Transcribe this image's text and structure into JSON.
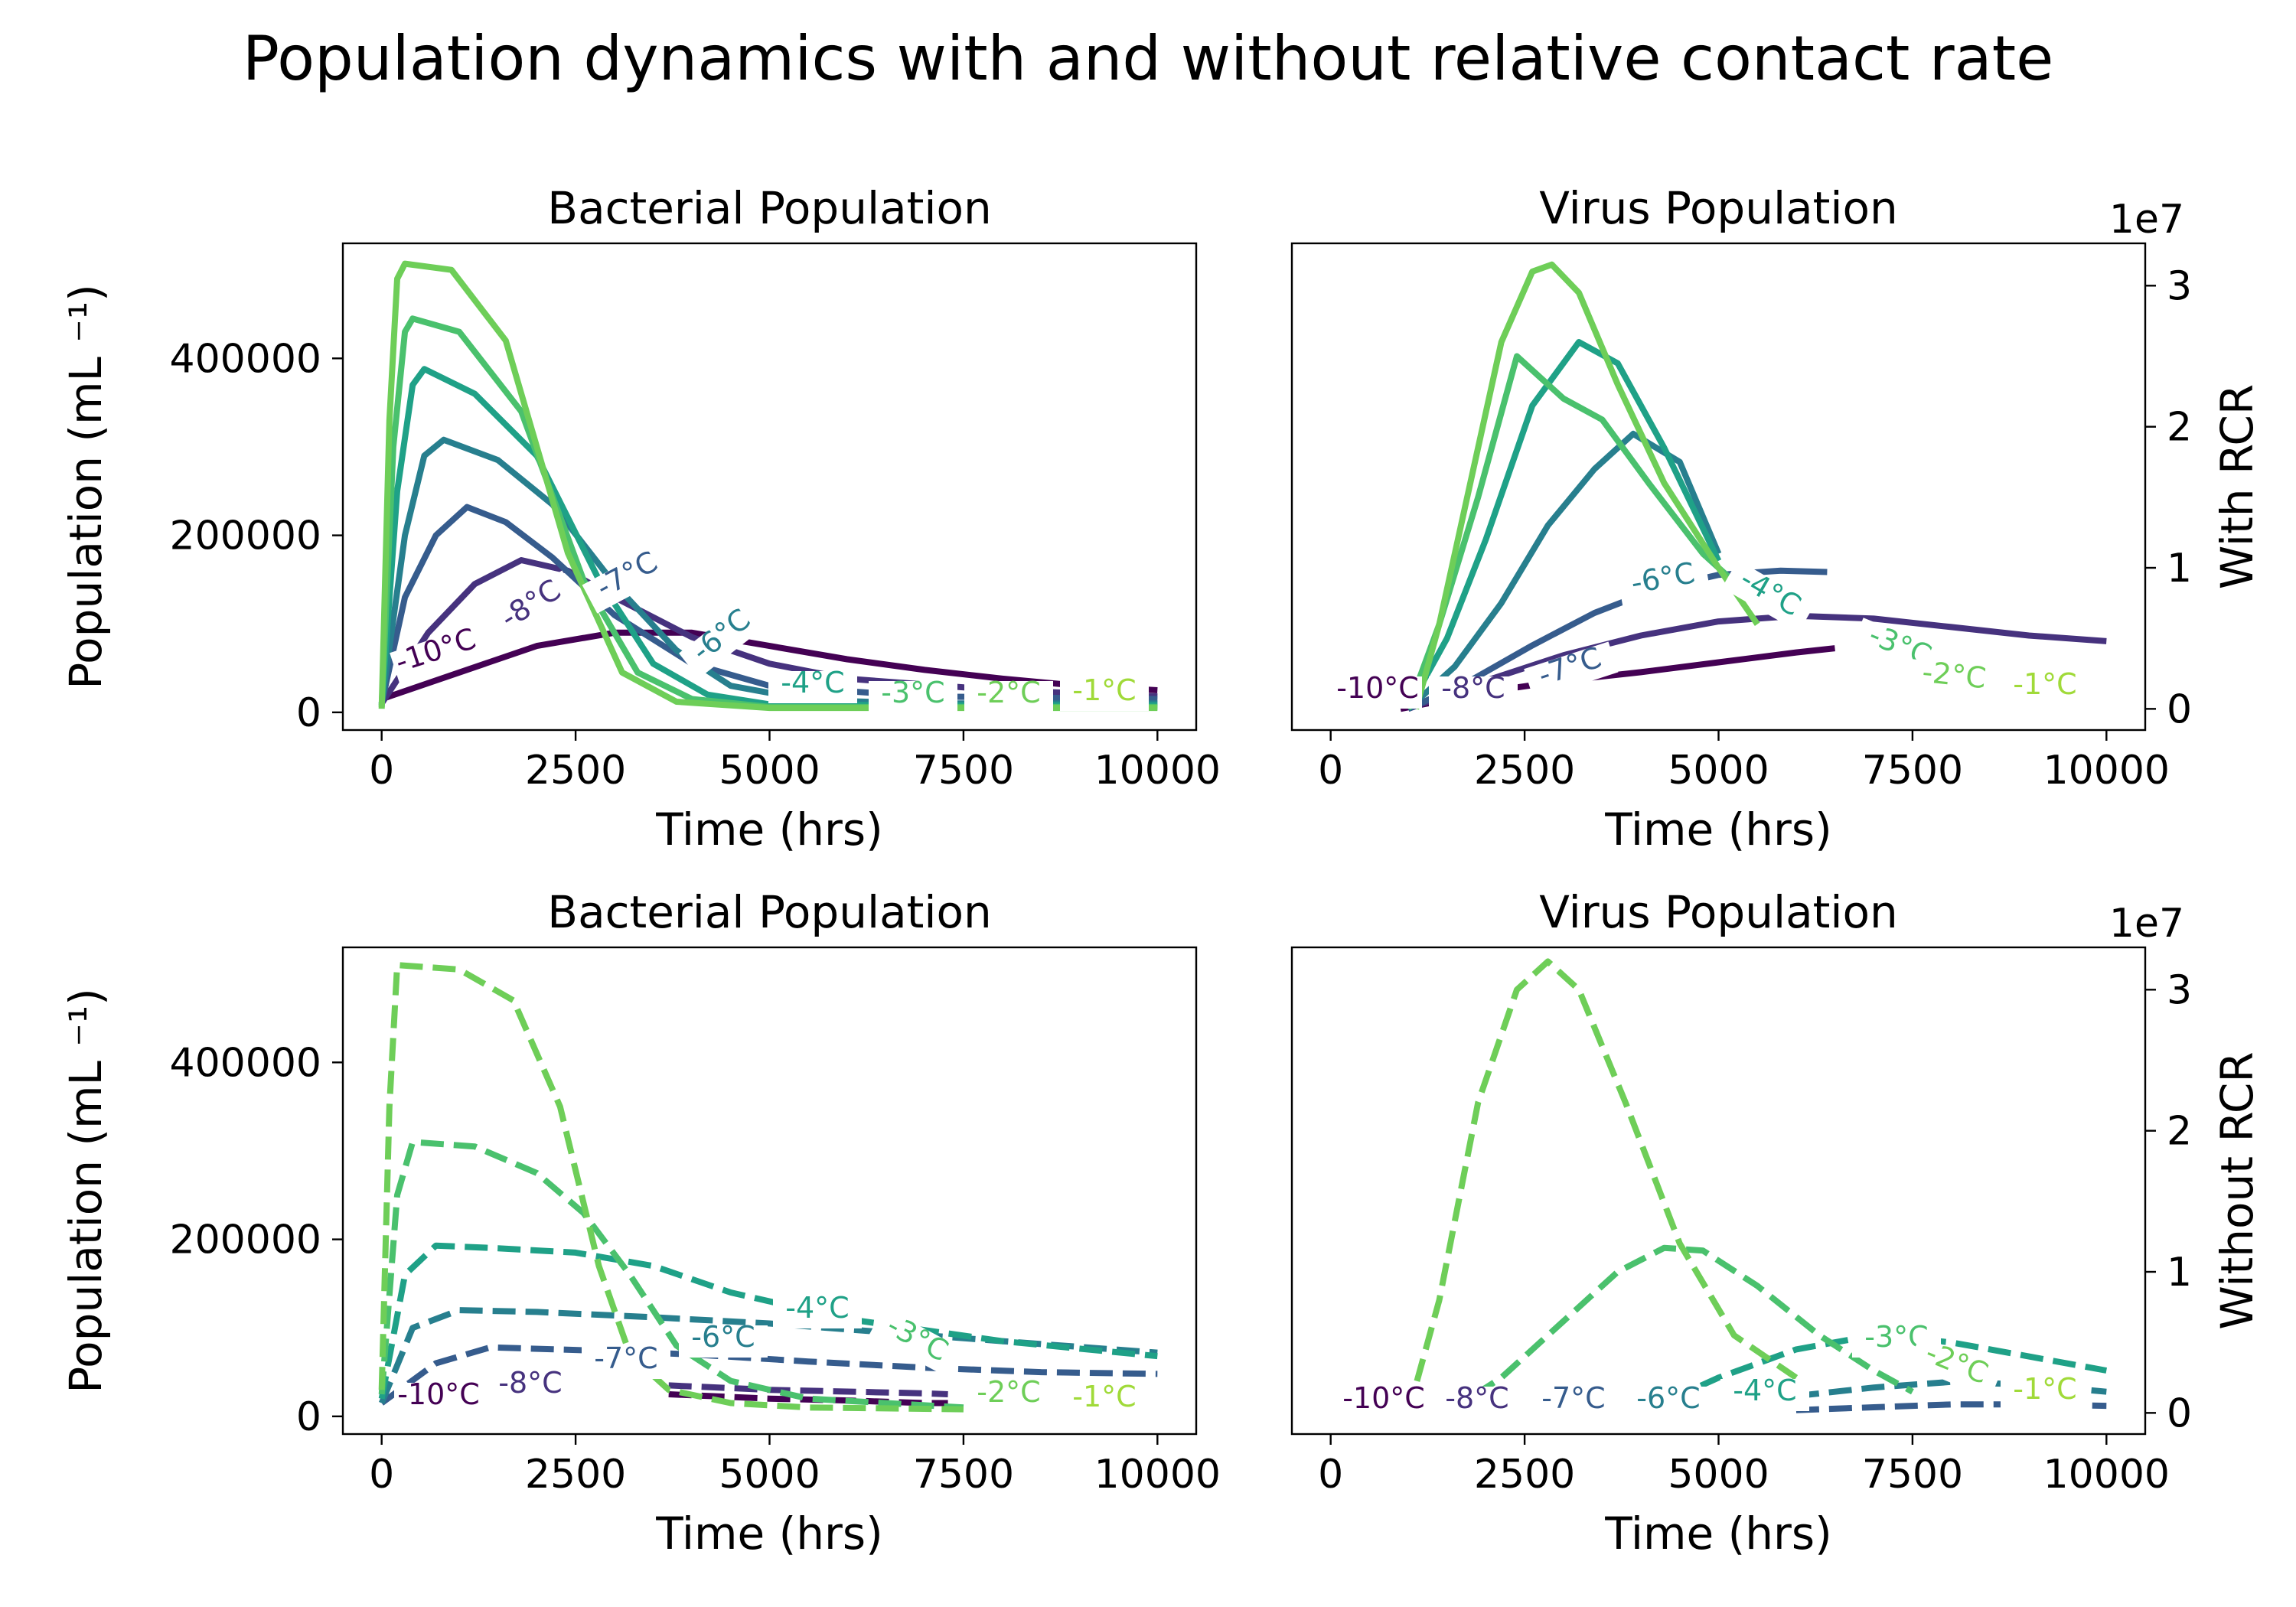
{
  "figure": {
    "title": "Population dynamics with and without relative contact rate"
  },
  "colors": {
    "-10°C": "#440154",
    "-8°C": "#46327e",
    "-7°C": "#365c8d",
    "-6°C": "#277f8e",
    "-4°C": "#1fa187",
    "-3°C": "#4ac16d",
    "-2°C": "#6ece58",
    "-1°C": "#a0da39"
  },
  "chart_data": [
    {
      "id": "bact-rcr",
      "type": "line",
      "title": "Bacterial Population",
      "xlabel": "Time (hrs)",
      "ylabel": "Population (mL ⁻¹)",
      "xlim": [
        -500,
        10500
      ],
      "ylim": [
        -20000,
        530000
      ],
      "xticks": [
        0,
        2500,
        5000,
        7500,
        10000
      ],
      "yticks": [
        0,
        200000,
        400000
      ],
      "ytick_labels": [
        "0",
        "200000",
        "400000"
      ],
      "linestyle": "solid",
      "series": [
        {
          "name": "-10°C",
          "x": [
            0,
            1000,
            2000,
            3000,
            4000,
            5000,
            6000,
            7000,
            8000,
            9000,
            10000
          ],
          "y": [
            15000,
            45000,
            75000,
            90000,
            90000,
            75000,
            60000,
            48000,
            38000,
            30000,
            25000
          ]
        },
        {
          "name": "-8°C",
          "x": [
            0,
            600,
            1200,
            1800,
            2400,
            3000,
            4000,
            5000,
            6000,
            8000,
            10000
          ],
          "y": [
            10000,
            90000,
            145000,
            172000,
            160000,
            130000,
            85000,
            55000,
            38000,
            25000,
            18000
          ]
        },
        {
          "name": "-7°C",
          "x": [
            0,
            300,
            700,
            1100,
            1600,
            2200,
            3000,
            4000,
            5000,
            7000,
            10000
          ],
          "y": [
            10000,
            130000,
            200000,
            232000,
            215000,
            175000,
            110000,
            55000,
            30000,
            18000,
            15000
          ]
        },
        {
          "name": "-6°C",
          "x": [
            0,
            300,
            550,
            800,
            1500,
            2200,
            3000,
            3800,
            4500,
            5500,
            7000,
            10000
          ],
          "y": [
            10000,
            200000,
            290000,
            308000,
            285000,
            235000,
            145000,
            70000,
            30000,
            14000,
            10000,
            10000
          ]
        },
        {
          "name": "-4°C",
          "x": [
            0,
            200,
            400,
            550,
            1200,
            2000,
            2800,
            3500,
            4200,
            5000,
            7000,
            10000
          ],
          "y": [
            8000,
            250000,
            370000,
            388000,
            360000,
            290000,
            150000,
            55000,
            20000,
            9000,
            8000,
            8000
          ]
        },
        {
          "name": "-3°C",
          "x": [
            0,
            150,
            300,
            400,
            1000,
            1800,
            2600,
            3300,
            4000,
            5000,
            7000,
            10000
          ],
          "y": [
            6000,
            300000,
            430000,
            445000,
            430000,
            340000,
            150000,
            45000,
            15000,
            6000,
            6000,
            6000
          ]
        },
        {
          "name": "-2°C",
          "x": [
            0,
            100,
            200,
            300,
            900,
            1600,
            2400,
            3100,
            3800,
            5000,
            7000,
            10000
          ],
          "y": [
            4000,
            330000,
            490000,
            507000,
            500000,
            420000,
            180000,
            45000,
            12000,
            5000,
            5000,
            5000
          ]
        }
      ],
      "contour_labels": [
        "-10°C",
        "-8°C",
        "-7°C",
        "-6°C",
        "-4°C",
        "-3°C",
        "-2°C",
        "-1°C"
      ]
    },
    {
      "id": "virus-rcr",
      "type": "line",
      "title": "Virus Population",
      "xlabel": "Time (hrs)",
      "ylabel_right": "With RCR",
      "multiplier": "1e7",
      "xlim": [
        -500,
        10500
      ],
      "ylim": [
        -0.15,
        3.3
      ],
      "xticks": [
        0,
        2500,
        5000,
        7500,
        10000
      ],
      "yticks": [
        0,
        1,
        2,
        3
      ],
      "ytick_labels": [
        "0",
        "1",
        "2",
        "3"
      ],
      "linestyle": "solid",
      "series": [
        {
          "name": "-10°C",
          "x": [
            900,
            2000,
            3000,
            4000,
            5000,
            6000,
            6500
          ],
          "y": [
            0.0,
            0.12,
            0.2,
            0.26,
            0.33,
            0.4,
            0.43
          ]
        },
        {
          "name": "-8°C",
          "x": [
            1000,
            2000,
            3000,
            4000,
            5000,
            6000,
            7000,
            8000,
            9000,
            10000
          ],
          "y": [
            0.0,
            0.2,
            0.38,
            0.52,
            0.62,
            0.66,
            0.64,
            0.58,
            0.52,
            0.48
          ]
        },
        {
          "name": "-7°C",
          "x": [
            1000,
            1800,
            2600,
            3400,
            4200,
            5000,
            5800,
            6400
          ],
          "y": [
            0.0,
            0.2,
            0.45,
            0.68,
            0.85,
            0.95,
            0.98,
            0.97
          ]
        },
        {
          "name": "-6°C",
          "x": [
            1000,
            1600,
            2200,
            2800,
            3400,
            3900,
            4500,
            5000
          ],
          "y": [
            0.0,
            0.3,
            0.75,
            1.3,
            1.7,
            1.95,
            1.75,
            1.1
          ]
        },
        {
          "name": "-4°C",
          "x": [
            1000,
            1500,
            2000,
            2600,
            3200,
            3700,
            4300,
            5000
          ],
          "y": [
            0.0,
            0.5,
            1.2,
            2.15,
            2.6,
            2.45,
            1.85,
            1.05
          ]
        },
        {
          "name": "-3°C",
          "x": [
            1000,
            1400,
            1900,
            2400,
            3000,
            3500,
            4100,
            4800,
            5200
          ],
          "y": [
            0.0,
            0.6,
            1.5,
            2.5,
            2.2,
            2.05,
            1.6,
            1.1,
            0.9
          ]
        },
        {
          "name": "-2°C",
          "x": [
            1100,
            1400,
            1800,
            2200,
            2600,
            2850,
            3200,
            3700,
            4300,
            5000,
            5500
          ],
          "y": [
            0.0,
            0.6,
            1.6,
            2.6,
            3.1,
            3.15,
            2.95,
            2.3,
            1.6,
            1.0,
            0.6
          ]
        }
      ],
      "contour_labels": [
        "-10°C",
        "-8°C",
        "-7°C",
        "-6°C",
        "-4°C",
        "-3°C",
        "-2°C",
        "-1°C"
      ]
    },
    {
      "id": "bact-norcr",
      "type": "line",
      "title": "Bacterial Population",
      "xlabel": "Time (hrs)",
      "ylabel": "Population (mL ⁻¹)",
      "xlim": [
        -500,
        10500
      ],
      "ylim": [
        -20000,
        530000
      ],
      "xticks": [
        0,
        2500,
        5000,
        7500,
        10000
      ],
      "yticks": [
        0,
        200000,
        400000
      ],
      "ytick_labels": [
        "0",
        "200000",
        "400000"
      ],
      "linestyle": "dashed",
      "series": [
        {
          "name": "-10°C",
          "x": [
            3700,
            5000,
            6000,
            7000,
            7300
          ],
          "y": [
            25000,
            20000,
            18000,
            15000,
            15000
          ]
        },
        {
          "name": "-8°C",
          "x": [
            3700,
            5000,
            6000,
            7000,
            7300
          ],
          "y": [
            35000,
            30000,
            28000,
            26000,
            25000
          ]
        },
        {
          "name": "-7°C",
          "x": [
            0,
            700,
            1400,
            2500,
            4000,
            5500,
            7000,
            8500,
            10000
          ],
          "y": [
            15000,
            60000,
            78000,
            75000,
            70000,
            62000,
            55000,
            50000,
            48000
          ]
        },
        {
          "name": "-6°C",
          "x": [
            0,
            400,
            1000,
            2000,
            3500,
            5000,
            6500,
            8000,
            10000
          ],
          "y": [
            15000,
            100000,
            120000,
            118000,
            112000,
            105000,
            95000,
            85000,
            72000
          ]
        },
        {
          "name": "-4°C",
          "x": [
            0,
            300,
            700,
            1500,
            2500,
            3500,
            4500,
            6000,
            8000,
            10000
          ],
          "y": [
            20000,
            160000,
            193000,
            190000,
            185000,
            170000,
            140000,
            110000,
            85000,
            68000
          ]
        },
        {
          "name": "-3°C",
          "x": [
            0,
            200,
            400,
            1200,
            2000,
            2600,
            3200,
            3800,
            4500,
            5500,
            7500
          ],
          "y": [
            25000,
            250000,
            310000,
            305000,
            275000,
            230000,
            160000,
            80000,
            40000,
            20000,
            10000
          ]
        },
        {
          "name": "-2°C",
          "x": [
            0,
            100,
            200,
            1000,
            1700,
            2300,
            2800,
            3200,
            3700,
            4500,
            5500,
            7500
          ],
          "y": [
            30000,
            350000,
            510000,
            505000,
            470000,
            350000,
            170000,
            70000,
            30000,
            15000,
            10000,
            8000
          ]
        }
      ],
      "contour_labels": [
        "-10°C",
        "-8°C",
        "-7°C",
        "-6°C",
        "-4°C",
        "-3°C",
        "-2°C",
        "-1°C"
      ]
    },
    {
      "id": "virus-norcr",
      "type": "line",
      "title": "Virus Population",
      "xlabel": "Time (hrs)",
      "ylabel_right": "Without RCR",
      "multiplier": "1e7",
      "xlim": [
        -500,
        10500
      ],
      "ylim": [
        -0.15,
        3.3
      ],
      "xticks": [
        0,
        2500,
        5000,
        7500,
        10000
      ],
      "yticks": [
        0,
        1,
        2,
        3
      ],
      "ytick_labels": [
        "0",
        "1",
        "2",
        "3"
      ],
      "linestyle": "dashed",
      "series": [
        {
          "name": "-7°C",
          "x": [
            6000,
            7000,
            8000,
            9000,
            10000
          ],
          "y": [
            0.02,
            0.04,
            0.06,
            0.06,
            0.05
          ]
        },
        {
          "name": "-6°C",
          "x": [
            6000,
            7000,
            8000,
            9000,
            10000
          ],
          "y": [
            0.12,
            0.18,
            0.22,
            0.2,
            0.15
          ]
        },
        {
          "name": "-4°C",
          "x": [
            4000,
            5000,
            6000,
            7000,
            8000,
            9000,
            10000
          ],
          "y": [
            0.0,
            0.25,
            0.45,
            0.55,
            0.5,
            0.4,
            0.3
          ]
        },
        {
          "name": "-3°C",
          "x": [
            1500,
            2200,
            3000,
            3700,
            4300,
            4800,
            5500,
            6300,
            7000,
            7500
          ],
          "y": [
            0.0,
            0.25,
            0.65,
            1.0,
            1.17,
            1.15,
            0.9,
            0.55,
            0.3,
            0.15
          ]
        },
        {
          "name": "-2°C",
          "x": [
            1000,
            1400,
            1900,
            2400,
            2800,
            3200,
            3800,
            4500,
            5200,
            6000
          ],
          "y": [
            0.0,
            0.8,
            2.2,
            3.0,
            3.2,
            3.0,
            2.2,
            1.2,
            0.55,
            0.25
          ]
        }
      ],
      "contour_labels": [
        "-10°C",
        "-8°C",
        "-7°C",
        "-6°C",
        "-4°C",
        "-3°C",
        "-2°C",
        "-1°C"
      ]
    }
  ]
}
